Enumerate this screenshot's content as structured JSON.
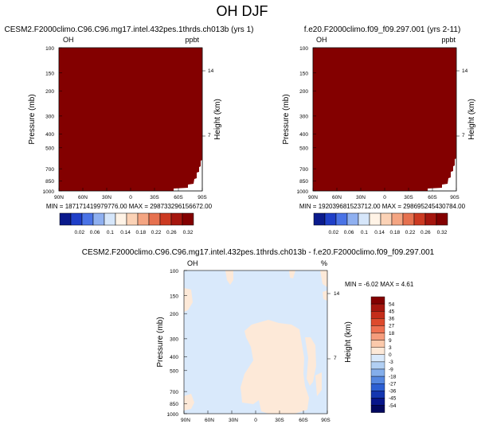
{
  "page_title": "OH DJF",
  "colorbar_top": {
    "labels": [
      "0.02",
      "0.06",
      "0.1",
      "0.14",
      "0.18",
      "0.22",
      "0.26",
      "0.32"
    ],
    "colors": [
      "#0a1a8c",
      "#1f3fc8",
      "#4a73e6",
      "#8fb0f0",
      "#d6e6fa",
      "#fff3e6",
      "#fbd2b6",
      "#f4a582",
      "#e6714f",
      "#cc3a22",
      "#a5160e",
      "#830000"
    ]
  },
  "colorbar_diff": {
    "labels": [
      "54",
      "45",
      "36",
      "27",
      "18",
      "9",
      "3",
      "0",
      "-3",
      "-9",
      "-18",
      "-27",
      "-36",
      "-45",
      "-54"
    ],
    "colors": [
      "#830000",
      "#a5160e",
      "#c42d1a",
      "#dd4a2c",
      "#ee7050",
      "#f59c7c",
      "#fbc9ab",
      "#fde9d8",
      "#d9e9fb",
      "#b1cff3",
      "#84aeeb",
      "#5587e0",
      "#2c5fd2",
      "#1436b0",
      "#07168a",
      "#02085e"
    ]
  },
  "chart_data": [
    {
      "type": "heatmap",
      "title": "CESM2.F2000climo.C96.C96.mg17.intel.432pes.1thrds.ch013b (yrs 1)",
      "variable_label": "OH",
      "units_label": "ppbt",
      "xlabel": "",
      "ylabel": "Pressure (mb)",
      "ylabel_right": "Height (km)",
      "x_ticks": [
        "90N",
        "60N",
        "30N",
        "0",
        "30S",
        "60S",
        "90S"
      ],
      "y_ticks": [
        100,
        150,
        200,
        300,
        400,
        500,
        700,
        850,
        1000
      ],
      "y_range": [
        100,
        1000
      ],
      "right_ticks": [
        "14",
        "7"
      ],
      "fill": "#830000",
      "stats": "MIN = 187171419979776.00    MAX = 298733296156672.00"
    },
    {
      "type": "heatmap",
      "title": "f.e20.F2000climo.f09_f09.297.001 (yrs 2-11)",
      "variable_label": "OH",
      "units_label": "ppbt",
      "xlabel": "",
      "ylabel": "Pressure (mb)",
      "ylabel_right": "Height (km)",
      "x_ticks": [
        "90N",
        "60N",
        "30N",
        "0",
        "30S",
        "60S",
        "90S"
      ],
      "y_ticks": [
        100,
        150,
        200,
        300,
        400,
        500,
        700,
        850,
        1000
      ],
      "y_range": [
        100,
        1000
      ],
      "right_ticks": [
        "14",
        "7"
      ],
      "fill": "#830000",
      "stats": "MIN = 192039681523712.00    MAX = 298695245430784.00"
    },
    {
      "type": "heatmap",
      "title": "CESM2.F2000climo.C96.C96.mg17.intel.432pes.1thrds.ch013b - f.e20.F2000climo.f09_f09.297.001",
      "variable_label": "OH",
      "units_label": "%",
      "xlabel": "",
      "ylabel": "Pressure (mb)",
      "ylabel_right": "Height (km)",
      "x_ticks": [
        "90N",
        "60N",
        "30N",
        "0",
        "30S",
        "60S",
        "90S"
      ],
      "y_ticks": [
        100,
        150,
        200,
        300,
        400,
        500,
        700,
        850,
        1000
      ],
      "y_range": [
        100,
        1000
      ],
      "right_ticks": [
        "14",
        "7"
      ],
      "stats": "MIN =  -6.02   MAX =   4.61",
      "field_min": -6.02,
      "field_max": 4.61,
      "dominant_bins": [
        "-3 to 0",
        "0 to 3"
      ]
    }
  ]
}
